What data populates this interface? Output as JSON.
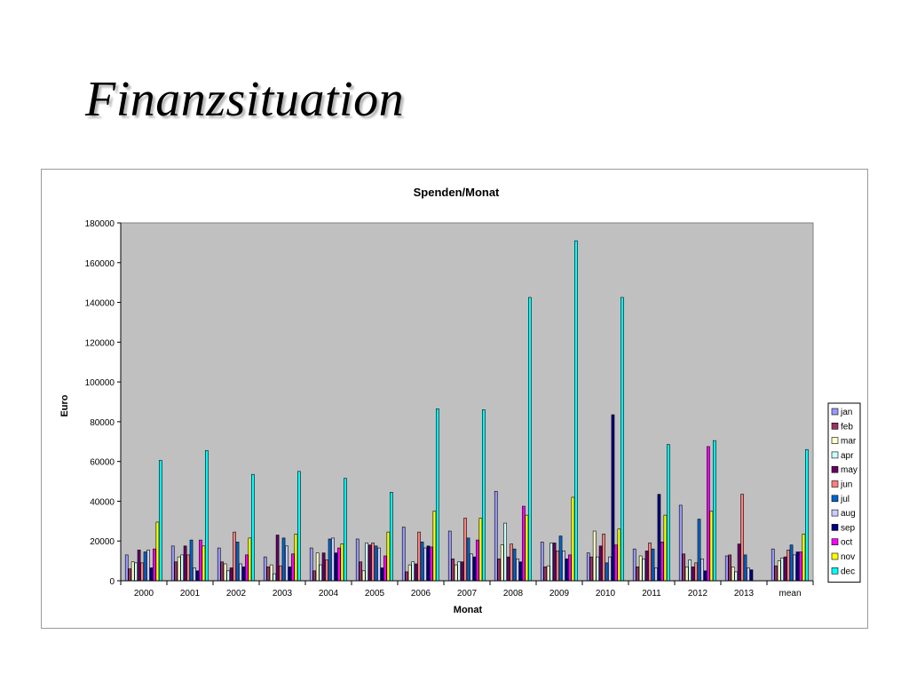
{
  "slide": {
    "title": "Finanzsituation"
  },
  "chart_data": {
    "type": "bar",
    "title": "Spenden/Monat",
    "xlabel": "Monat",
    "ylabel": "Euro",
    "ylim": [
      0,
      180000
    ],
    "yticks": [
      0,
      20000,
      40000,
      60000,
      80000,
      100000,
      120000,
      140000,
      160000,
      180000
    ],
    "grid": false,
    "legend_position": "right",
    "categories": [
      "2000",
      "2001",
      "2002",
      "2003",
      "2004",
      "2005",
      "2006",
      "2007",
      "2008",
      "2009",
      "2010",
      "2011",
      "2012",
      "2013",
      "mean"
    ],
    "series": [
      {
        "name": "jan",
        "color": "#9999ff",
        "values": [
          13000,
          17500,
          16500,
          12000,
          16500,
          21000,
          27000,
          25000,
          45000,
          19500,
          14000,
          16000,
          38000,
          12500,
          16000
        ]
      },
      {
        "name": "feb",
        "color": "#993366",
        "values": [
          6000,
          9500,
          9500,
          7000,
          5000,
          9500,
          4500,
          11000,
          11000,
          7000,
          12000,
          7000,
          13500,
          13000,
          7500
        ]
      },
      {
        "name": "mar",
        "color": "#ffffcc",
        "values": [
          9500,
          12000,
          8500,
          8000,
          14000,
          5000,
          8000,
          8000,
          18000,
          7500,
          25000,
          12500,
          7000,
          7000,
          10000
        ]
      },
      {
        "name": "apr",
        "color": "#ccffff",
        "values": [
          9000,
          13000,
          5000,
          3500,
          8000,
          19000,
          9500,
          9500,
          29000,
          19000,
          12000,
          11000,
          10500,
          4500,
          11500
        ]
      },
      {
        "name": "may",
        "color": "#660066",
        "values": [
          15500,
          17500,
          6500,
          23000,
          14000,
          18000,
          8500,
          9500,
          12000,
          19000,
          17500,
          15000,
          7000,
          18500,
          12000
        ]
      },
      {
        "name": "jun",
        "color": "#ff8080",
        "values": [
          9000,
          13000,
          24500,
          7500,
          10500,
          19000,
          24500,
          31500,
          18500,
          15000,
          23500,
          19000,
          9000,
          43500,
          15500
        ]
      },
      {
        "name": "jul",
        "color": "#0066cc",
        "values": [
          14500,
          20500,
          19500,
          21500,
          21000,
          17500,
          19500,
          21500,
          16000,
          22500,
          9000,
          16000,
          31000,
          13000,
          18000
        ]
      },
      {
        "name": "aug",
        "color": "#ccccff",
        "values": [
          15500,
          6500,
          8500,
          17500,
          21500,
          16500,
          16500,
          13500,
          11000,
          15000,
          12000,
          6500,
          11000,
          6500,
          13000
        ]
      },
      {
        "name": "sep",
        "color": "#000080",
        "values": [
          6500,
          5000,
          7000,
          7000,
          14000,
          6500,
          17500,
          12000,
          9500,
          11000,
          83500,
          43500,
          5000,
          5500,
          14500
        ]
      },
      {
        "name": "oct",
        "color": "#ff00ff",
        "values": [
          16000,
          20500,
          13000,
          13500,
          16500,
          12500,
          17000,
          20500,
          37500,
          13000,
          18000,
          19500,
          67500,
          0,
          14500
        ]
      },
      {
        "name": "nov",
        "color": "#ffff00",
        "values": [
          29500,
          17500,
          21500,
          23500,
          18500,
          24500,
          35000,
          31500,
          33000,
          42000,
          26000,
          33000,
          35000,
          0,
          23500
        ]
      },
      {
        "name": "dec",
        "color": "#00ffff",
        "values": [
          60500,
          65500,
          53500,
          55000,
          51500,
          44500,
          86500,
          86000,
          142500,
          171000,
          142500,
          68500,
          70500,
          0,
          66000
        ]
      }
    ]
  }
}
